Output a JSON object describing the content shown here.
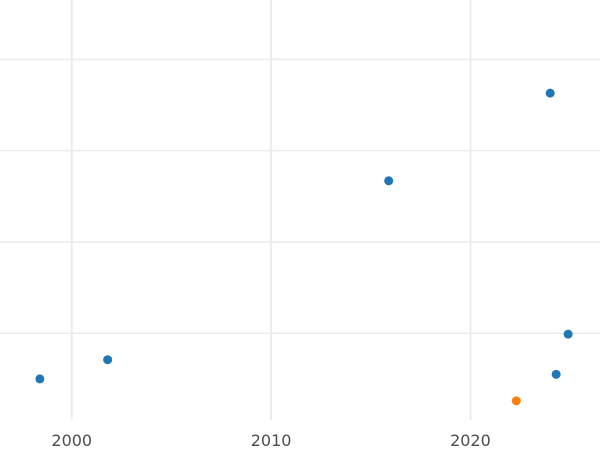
{
  "chart_data": {
    "type": "scatter",
    "title": "",
    "xlabel": "",
    "ylabel": "",
    "x_ticks": [
      "2000",
      "2010",
      "2020"
    ],
    "x_tick_values": [
      2000,
      2010,
      2020
    ],
    "xlim": [
      1996.4,
      2026.5
    ],
    "ylim": [
      -0.45,
      4.15
    ],
    "y_gridlines": [
      0.5,
      1.5,
      2.5,
      3.5
    ],
    "grid": true,
    "legend": "none",
    "series": [
      {
        "color": "#1f77b4",
        "points": [
          {
            "x": 1998.4,
            "y": 0.0
          },
          {
            "x": 2001.8,
            "y": 0.21
          },
          {
            "x": 2015.9,
            "y": 2.17
          },
          {
            "x": 2024.0,
            "y": 3.13
          },
          {
            "x": 2024.3,
            "y": 0.05
          },
          {
            "x": 2024.9,
            "y": 0.49
          }
        ]
      },
      {
        "color": "#ff7f0e",
        "points": [
          {
            "x": 2022.3,
            "y": -0.24
          }
        ]
      }
    ]
  }
}
